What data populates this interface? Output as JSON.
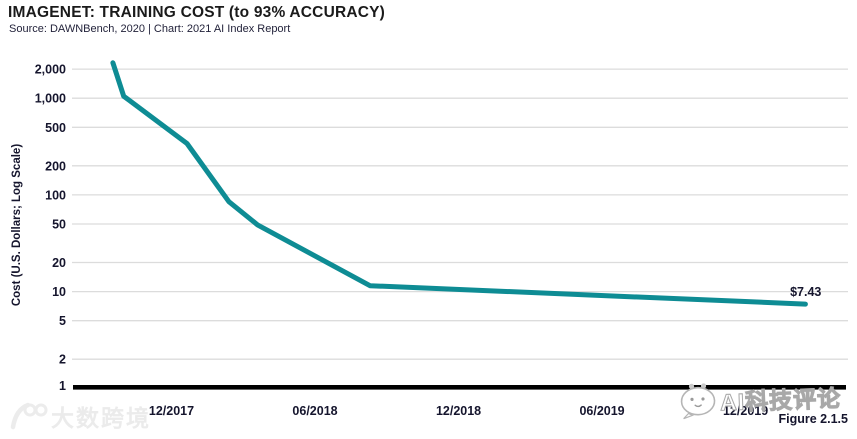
{
  "header": {
    "title": "IMAGENET: TRAINING COST (to 93% ACCURACY)",
    "subtitle": "Source: DAWNBench, 2020 | Chart: 2021 AI Index Report"
  },
  "figure_label": "Figure 2.1.5",
  "colors": {
    "line": "#0e8c94",
    "grid": "#dcdcdc",
    "axis": "#000000",
    "text_dark": "#15152d"
  },
  "chart_data": {
    "type": "line",
    "title": "IMAGENET: TRAINING COST (to 93% ACCURACY)",
    "xlabel": "",
    "ylabel": "Cost (U.S. Dollars; Log Scale)",
    "y_scale": "log",
    "ylim": [
      1,
      2800
    ],
    "grid": true,
    "legend": false,
    "y_ticks": [
      {
        "value": 1,
        "label": "1"
      },
      {
        "value": 2,
        "label": "2"
      },
      {
        "value": 5,
        "label": "5"
      },
      {
        "value": 10,
        "label": "10"
      },
      {
        "value": 20,
        "label": "20"
      },
      {
        "value": 50,
        "label": "50"
      },
      {
        "value": 100,
        "label": "100"
      },
      {
        "value": 200,
        "label": "200"
      },
      {
        "value": 500,
        "label": "500"
      },
      {
        "value": 1000,
        "label": "1,000"
      },
      {
        "value": 2000,
        "label": "2,000"
      }
    ],
    "x_ticks": [
      {
        "m": 0,
        "label": "12/2017"
      },
      {
        "m": 6,
        "label": "06/2018"
      },
      {
        "m": 12,
        "label": "12/2018"
      },
      {
        "m": 18,
        "label": "06/2019"
      },
      {
        "m": 24,
        "label": "12/2019"
      }
    ],
    "x_unit": "months relative to 12/2017 tick",
    "series": [
      {
        "name": "ImageNet training cost (USD)",
        "points": [
          {
            "m": -2.45,
            "value": 2323
          },
          {
            "m": -2.0,
            "value": 1050
          },
          {
            "m": 0.65,
            "value": 340
          },
          {
            "m": 2.4,
            "value": 85
          },
          {
            "m": 3.6,
            "value": 49
          },
          {
            "m": 8.3,
            "value": 11.5
          },
          {
            "m": 26.5,
            "value": 7.43
          }
        ]
      }
    ],
    "end_label": "$7.43"
  },
  "watermarks": {
    "left_text": "大数跨境",
    "right_text": "AI科技评论"
  }
}
